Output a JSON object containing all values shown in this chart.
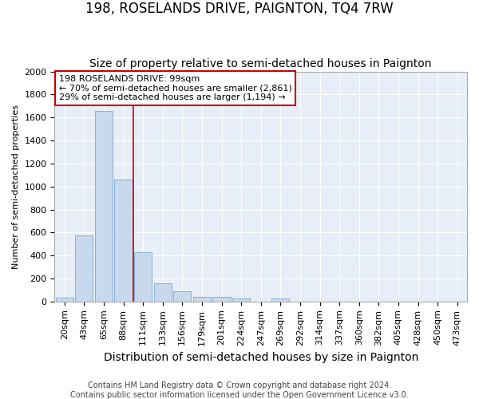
{
  "title": "198, ROSELANDS DRIVE, PAIGNTON, TQ4 7RW",
  "subtitle": "Size of property relative to semi-detached houses in Paignton",
  "xlabel": "Distribution of semi-detached houses by size in Paignton",
  "ylabel": "Number of semi-detached properties",
  "categories": [
    "20sqm",
    "43sqm",
    "65sqm",
    "88sqm",
    "111sqm",
    "133sqm",
    "156sqm",
    "179sqm",
    "201sqm",
    "224sqm",
    "247sqm",
    "269sqm",
    "292sqm",
    "314sqm",
    "337sqm",
    "360sqm",
    "382sqm",
    "405sqm",
    "428sqm",
    "450sqm",
    "473sqm"
  ],
  "values": [
    30,
    575,
    1660,
    1060,
    430,
    155,
    90,
    40,
    40,
    25,
    0,
    25,
    0,
    0,
    0,
    0,
    0,
    0,
    0,
    0,
    0
  ],
  "bar_color": "#c8d9ee",
  "bar_edge_color": "#7ba7d0",
  "vline_color": "#cc0000",
  "annotation_text": "198 ROSELANDS DRIVE: 99sqm\n← 70% of semi-detached houses are smaller (2,861)\n29% of semi-detached houses are larger (1,194) →",
  "annotation_box_color": "#ffffff",
  "annotation_box_edge": "#cc0000",
  "ylim": [
    0,
    2000
  ],
  "yticks": [
    0,
    200,
    400,
    600,
    800,
    1000,
    1200,
    1400,
    1600,
    1800,
    2000
  ],
  "footer1": "Contains HM Land Registry data © Crown copyright and database right 2024.",
  "footer2": "Contains public sector information licensed under the Open Government Licence v3.0.",
  "title_fontsize": 12,
  "subtitle_fontsize": 10,
  "xlabel_fontsize": 10,
  "ylabel_fontsize": 8,
  "tick_fontsize": 8,
  "annotation_fontsize": 8,
  "footer_fontsize": 7,
  "background_color": "#ffffff",
  "plot_bg_color": "#e8eef7"
}
